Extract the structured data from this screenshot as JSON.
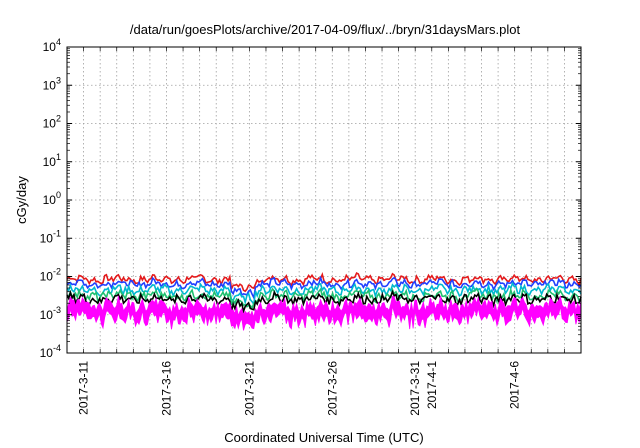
{
  "chart_data": {
    "type": "line",
    "title": "/data/run/goesPlots/archive/2017-04-09/flux/../bryn/31daysMars.plot",
    "xlabel": "Coordinated Universal Time (UTC)",
    "ylabel": "cGy/day",
    "yscale": "log",
    "ylim": [
      0.0001,
      10000
    ],
    "yticks": [
      {
        "value": 0.0001,
        "base": "10",
        "exp": "-4"
      },
      {
        "value": 0.001,
        "base": "10",
        "exp": "-3"
      },
      {
        "value": 0.01,
        "base": "10",
        "exp": "-2"
      },
      {
        "value": 0.1,
        "base": "10",
        "exp": "-1"
      },
      {
        "value": 1,
        "base": "10",
        "exp": "0"
      },
      {
        "value": 10,
        "base": "10",
        "exp": "1"
      },
      {
        "value": 100,
        "base": "10",
        "exp": "2"
      },
      {
        "value": 1000,
        "base": "10",
        "exp": "3"
      },
      {
        "value": 10000,
        "base": "10",
        "exp": "4"
      }
    ],
    "xlim": [
      "2017-03-10",
      "2017-04-10"
    ],
    "xticks": [
      "2017-3-11",
      "2017-3-16",
      "2017-3-21",
      "2017-3-26",
      "2017-3-31",
      "2017-4-1",
      "2017-4-6"
    ],
    "grid": true,
    "series": [
      {
        "color": "#e41a1c",
        "level": 0.0085,
        "noise": 0.15
      },
      {
        "color": "#2040ff",
        "level": 0.0065,
        "noise": 0.16
      },
      {
        "color": "#00b8d0",
        "level": 0.0045,
        "noise": 0.18
      },
      {
        "color": "#20c070",
        "level": 0.0032,
        "noise": 0.2
      },
      {
        "color": "#000000",
        "level": 0.0026,
        "noise": 0.22
      },
      {
        "color": "#ff00ff",
        "level": 0.0018,
        "noise": 0.3,
        "band": true
      }
    ]
  }
}
